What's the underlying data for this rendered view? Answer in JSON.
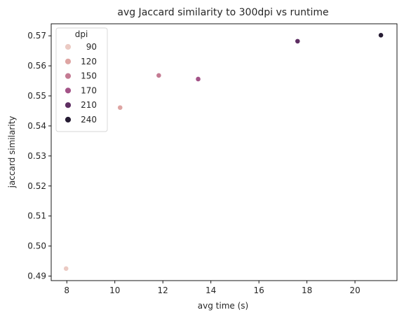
{
  "chart_data": {
    "type": "scatter",
    "title": "avg Jaccard similarity to 300dpi vs runtime",
    "xlabel": "avg time (s)",
    "ylabel": "jaccard similarity",
    "xlim": [
      7.35,
      21.75
    ],
    "ylim": [
      0.4885,
      0.574
    ],
    "xticks": [
      8,
      10,
      12,
      14,
      16,
      18,
      20
    ],
    "yticks": [
      0.49,
      0.5,
      0.51,
      0.52,
      0.53,
      0.54,
      0.55,
      0.56,
      0.57
    ],
    "xtick_labels": [
      "8",
      "10",
      "12",
      "14",
      "16",
      "18",
      "20"
    ],
    "ytick_labels": [
      "0.49",
      "0.50",
      "0.51",
      "0.52",
      "0.53",
      "0.54",
      "0.55",
      "0.56",
      "0.57"
    ],
    "grid": false,
    "legend": {
      "title": "dpi",
      "placement": "upper-left"
    },
    "points": [
      {
        "dpi": "90",
        "x": 7.97,
        "y": 0.4925,
        "color": "#ebcac3"
      },
      {
        "dpi": "120",
        "x": 10.22,
        "y": 0.5461,
        "color": "#dea5a3"
      },
      {
        "dpi": "150",
        "x": 11.83,
        "y": 0.5568,
        "color": "#c47b93"
      },
      {
        "dpi": "170",
        "x": 13.47,
        "y": 0.5556,
        "color": "#a35387"
      },
      {
        "dpi": "210",
        "x": 17.61,
        "y": 0.5682,
        "color": "#5e2e62"
      },
      {
        "dpi": "240",
        "x": 21.08,
        "y": 0.5702,
        "color": "#261c33"
      }
    ]
  }
}
